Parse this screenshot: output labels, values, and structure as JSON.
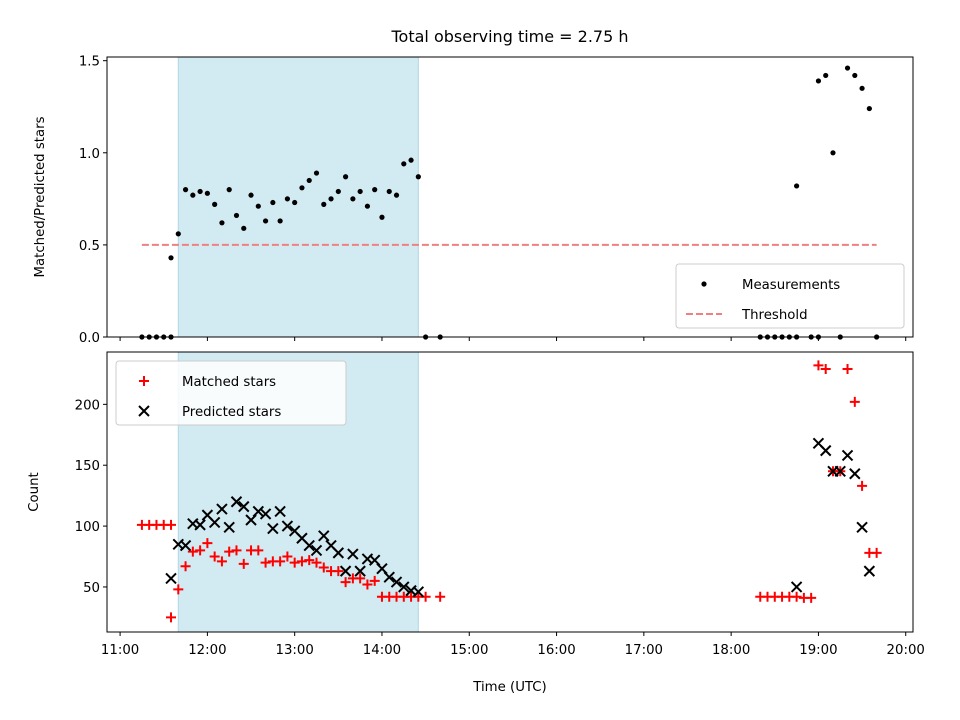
{
  "chart_data": {
    "title": "Total observing time = 2.75 h",
    "type": "scatter",
    "shaded_interval": {
      "start": "11:40",
      "end": "14:25",
      "color": "#add8e6"
    },
    "x_axis": {
      "label": "Time (UTC)",
      "range": [
        "10:51",
        "20:05"
      ],
      "ticks": [
        "11:00",
        "12:00",
        "13:00",
        "14:00",
        "15:00",
        "16:00",
        "17:00",
        "18:00",
        "19:00",
        "20:00"
      ]
    },
    "panels": [
      {
        "name": "ratio",
        "ylabel": "Matched/Predicted stars",
        "ylim": [
          0,
          1.52
        ],
        "yticks": [
          "0.0",
          "0.5",
          "1.0",
          "1.5"
        ],
        "legend_position": "lower-right",
        "series": [
          {
            "name": "Measurements",
            "kind": "dot",
            "color": "#000000",
            "points": [
              [
                "11:15",
                0
              ],
              [
                "11:20",
                0
              ],
              [
                "11:25",
                0
              ],
              [
                "11:30",
                0
              ],
              [
                "11:35",
                0
              ],
              [
                "11:35",
                0.43
              ],
              [
                "11:40",
                0.56
              ],
              [
                "11:45",
                0.8
              ],
              [
                "11:50",
                0.77
              ],
              [
                "11:55",
                0.79
              ],
              [
                "12:00",
                0.78
              ],
              [
                "12:05",
                0.72
              ],
              [
                "12:10",
                0.62
              ],
              [
                "12:15",
                0.8
              ],
              [
                "12:20",
                0.66
              ],
              [
                "12:25",
                0.59
              ],
              [
                "12:30",
                0.77
              ],
              [
                "12:35",
                0.71
              ],
              [
                "12:40",
                0.63
              ],
              [
                "12:45",
                0.73
              ],
              [
                "12:50",
                0.63
              ],
              [
                "12:55",
                0.75
              ],
              [
                "13:00",
                0.73
              ],
              [
                "13:05",
                0.81
              ],
              [
                "13:10",
                0.85
              ],
              [
                "13:15",
                0.89
              ],
              [
                "13:20",
                0.72
              ],
              [
                "13:25",
                0.75
              ],
              [
                "13:30",
                0.79
              ],
              [
                "13:35",
                0.87
              ],
              [
                "13:40",
                0.75
              ],
              [
                "13:45",
                0.79
              ],
              [
                "13:50",
                0.71
              ],
              [
                "13:55",
                0.8
              ],
              [
                "14:00",
                0.65
              ],
              [
                "14:05",
                0.79
              ],
              [
                "14:10",
                0.77
              ],
              [
                "14:15",
                0.94
              ],
              [
                "14:20",
                0.96
              ],
              [
                "14:25",
                0.87
              ],
              [
                "14:30",
                0
              ],
              [
                "14:40",
                0
              ],
              [
                "18:20",
                0
              ],
              [
                "18:25",
                0
              ],
              [
                "18:30",
                0
              ],
              [
                "18:35",
                0
              ],
              [
                "18:40",
                0
              ],
              [
                "18:45",
                0
              ],
              [
                "18:45",
                0.82
              ],
              [
                "18:55",
                0
              ],
              [
                "19:00",
                0
              ],
              [
                "19:00",
                1.39
              ],
              [
                "19:05",
                1.42
              ],
              [
                "19:10",
                1.0
              ],
              [
                "19:15",
                0
              ],
              [
                "19:20",
                1.46
              ],
              [
                "19:25",
                1.42
              ],
              [
                "19:30",
                1.35
              ],
              [
                "19:35",
                1.24
              ],
              [
                "19:40",
                0
              ]
            ]
          },
          {
            "name": "Threshold",
            "kind": "dashed-line",
            "color": "#f08080",
            "points": [
              [
                "11:15",
                0.5
              ],
              [
                "19:40",
                0.5
              ]
            ]
          }
        ]
      },
      {
        "name": "counts",
        "ylabel": "Count",
        "ylim": [
          13,
          243
        ],
        "yticks": [
          "50",
          "100",
          "150",
          "200"
        ],
        "legend_position": "upper-left",
        "series": [
          {
            "name": "Matched stars",
            "kind": "plus",
            "color": "#ff0000",
            "points": [
              [
                "11:15",
                101
              ],
              [
                "11:20",
                101
              ],
              [
                "11:25",
                101
              ],
              [
                "11:30",
                101
              ],
              [
                "11:35",
                101
              ],
              [
                "11:35",
                25
              ],
              [
                "11:40",
                48
              ],
              [
                "11:45",
                67
              ],
              [
                "11:50",
                79
              ],
              [
                "11:55",
                80
              ],
              [
                "12:00",
                86
              ],
              [
                "12:05",
                75
              ],
              [
                "12:10",
                71
              ],
              [
                "12:15",
                79
              ],
              [
                "12:20",
                80
              ],
              [
                "12:25",
                69
              ],
              [
                "12:30",
                80
              ],
              [
                "12:35",
                80
              ],
              [
                "12:40",
                70
              ],
              [
                "12:45",
                71
              ],
              [
                "12:50",
                71
              ],
              [
                "12:55",
                75
              ],
              [
                "13:00",
                70
              ],
              [
                "13:05",
                71
              ],
              [
                "13:10",
                72
              ],
              [
                "13:15",
                70
              ],
              [
                "13:20",
                66
              ],
              [
                "13:25",
                63
              ],
              [
                "13:30",
                63
              ],
              [
                "13:35",
                54
              ],
              [
                "13:40",
                57
              ],
              [
                "13:45",
                57
              ],
              [
                "13:50",
                52
              ],
              [
                "13:55",
                55
              ],
              [
                "14:00",
                42
              ],
              [
                "14:05",
                42
              ],
              [
                "14:10",
                42
              ],
              [
                "14:15",
                42
              ],
              [
                "14:20",
                42
              ],
              [
                "14:25",
                42
              ],
              [
                "14:30",
                42
              ],
              [
                "14:40",
                42
              ],
              [
                "18:20",
                42
              ],
              [
                "18:25",
                42
              ],
              [
                "18:30",
                42
              ],
              [
                "18:35",
                42
              ],
              [
                "18:40",
                42
              ],
              [
                "18:45",
                42
              ],
              [
                "18:50",
                41
              ],
              [
                "18:55",
                41
              ],
              [
                "19:00",
                232
              ],
              [
                "19:05",
                229
              ],
              [
                "19:10",
                145
              ],
              [
                "19:15",
                145
              ],
              [
                "19:20",
                229
              ],
              [
                "19:25",
                202
              ],
              [
                "19:30",
                133
              ],
              [
                "19:35",
                78
              ],
              [
                "19:40",
                78
              ]
            ]
          },
          {
            "name": "Predicted stars",
            "kind": "x",
            "color": "#000000",
            "points": [
              [
                "11:35",
                57
              ],
              [
                "11:40",
                85
              ],
              [
                "11:45",
                84
              ],
              [
                "11:50",
                102
              ],
              [
                "11:55",
                101
              ],
              [
                "12:00",
                109
              ],
              [
                "12:05",
                103
              ],
              [
                "12:10",
                114
              ],
              [
                "12:15",
                99
              ],
              [
                "12:20",
                120
              ],
              [
                "12:25",
                116
              ],
              [
                "12:30",
                105
              ],
              [
                "12:35",
                112
              ],
              [
                "12:40",
                110
              ],
              [
                "12:45",
                98
              ],
              [
                "12:50",
                112
              ],
              [
                "12:55",
                100
              ],
              [
                "13:00",
                96
              ],
              [
                "13:05",
                90
              ],
              [
                "13:10",
                84
              ],
              [
                "13:15",
                80
              ],
              [
                "13:20",
                92
              ],
              [
                "13:25",
                84
              ],
              [
                "13:30",
                78
              ],
              [
                "13:35",
                63
              ],
              [
                "13:40",
                77
              ],
              [
                "13:45",
                63
              ],
              [
                "13:50",
                73
              ],
              [
                "13:55",
                72
              ],
              [
                "14:00",
                65
              ],
              [
                "14:05",
                58
              ],
              [
                "14:10",
                54
              ],
              [
                "14:15",
                50
              ],
              [
                "14:20",
                47
              ],
              [
                "14:25",
                46
              ],
              [
                "18:45",
                50
              ],
              [
                "19:00",
                168
              ],
              [
                "19:05",
                162
              ],
              [
                "19:10",
                145
              ],
              [
                "19:15",
                145
              ],
              [
                "19:20",
                158
              ],
              [
                "19:25",
                143
              ],
              [
                "19:30",
                99
              ],
              [
                "19:35",
                63
              ]
            ]
          }
        ]
      }
    ]
  }
}
